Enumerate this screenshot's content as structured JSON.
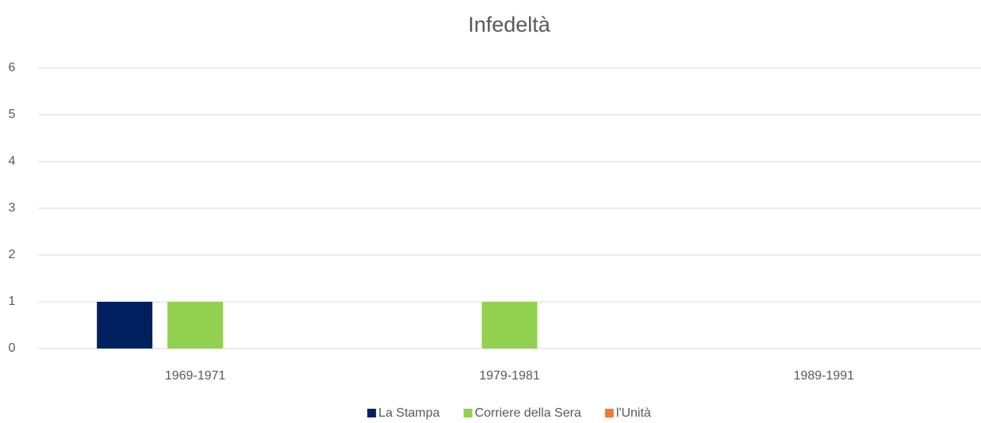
{
  "chart_data": {
    "type": "bar",
    "title": "Infedeltà",
    "categories": [
      "1969-1971",
      "1979-1981",
      "1989-1991"
    ],
    "series": [
      {
        "name": "La Stampa",
        "color": "#002060",
        "values": [
          1,
          0,
          0
        ]
      },
      {
        "name": "Corriere della Sera",
        "color": "#92d050",
        "values": [
          1,
          1,
          0
        ]
      },
      {
        "name": "l'Unità",
        "color": "#ed7d31",
        "values": [
          0,
          0,
          0
        ]
      }
    ],
    "ylim": [
      0,
      6
    ],
    "yticks": [
      0,
      1,
      2,
      3,
      4,
      5,
      6
    ],
    "grid": true,
    "legend": "bottom"
  }
}
